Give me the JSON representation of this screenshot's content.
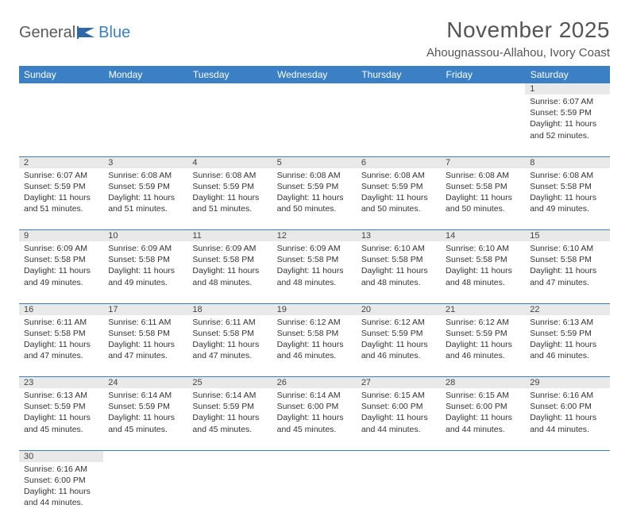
{
  "logo": {
    "text1": "General",
    "text2": "Blue"
  },
  "title": "November 2025",
  "location": "Ahougnassou-Allahou, Ivory Coast",
  "colors": {
    "header_bg": "#3b7fc4",
    "header_text": "#ffffff",
    "daynum_bg": "#e9e9e9",
    "row_divider": "#3b7fc4",
    "text": "#333333",
    "logo_gray": "#5a5a5a",
    "logo_blue": "#3b7fc4"
  },
  "fonts": {
    "title_pt": 28,
    "location_pt": 15,
    "header_pt": 12,
    "daynum_pt": 11,
    "body_pt": 10.5
  },
  "days": [
    "Sunday",
    "Monday",
    "Tuesday",
    "Wednesday",
    "Thursday",
    "Friday",
    "Saturday"
  ],
  "weeks": [
    [
      null,
      null,
      null,
      null,
      null,
      null,
      {
        "n": "1",
        "sr": "6:07 AM",
        "ss": "5:59 PM",
        "dl": "11 hours and 52 minutes."
      }
    ],
    [
      {
        "n": "2",
        "sr": "6:07 AM",
        "ss": "5:59 PM",
        "dl": "11 hours and 51 minutes."
      },
      {
        "n": "3",
        "sr": "6:08 AM",
        "ss": "5:59 PM",
        "dl": "11 hours and 51 minutes."
      },
      {
        "n": "4",
        "sr": "6:08 AM",
        "ss": "5:59 PM",
        "dl": "11 hours and 51 minutes."
      },
      {
        "n": "5",
        "sr": "6:08 AM",
        "ss": "5:59 PM",
        "dl": "11 hours and 50 minutes."
      },
      {
        "n": "6",
        "sr": "6:08 AM",
        "ss": "5:59 PM",
        "dl": "11 hours and 50 minutes."
      },
      {
        "n": "7",
        "sr": "6:08 AM",
        "ss": "5:58 PM",
        "dl": "11 hours and 50 minutes."
      },
      {
        "n": "8",
        "sr": "6:08 AM",
        "ss": "5:58 PM",
        "dl": "11 hours and 49 minutes."
      }
    ],
    [
      {
        "n": "9",
        "sr": "6:09 AM",
        "ss": "5:58 PM",
        "dl": "11 hours and 49 minutes."
      },
      {
        "n": "10",
        "sr": "6:09 AM",
        "ss": "5:58 PM",
        "dl": "11 hours and 49 minutes."
      },
      {
        "n": "11",
        "sr": "6:09 AM",
        "ss": "5:58 PM",
        "dl": "11 hours and 48 minutes."
      },
      {
        "n": "12",
        "sr": "6:09 AM",
        "ss": "5:58 PM",
        "dl": "11 hours and 48 minutes."
      },
      {
        "n": "13",
        "sr": "6:10 AM",
        "ss": "5:58 PM",
        "dl": "11 hours and 48 minutes."
      },
      {
        "n": "14",
        "sr": "6:10 AM",
        "ss": "5:58 PM",
        "dl": "11 hours and 48 minutes."
      },
      {
        "n": "15",
        "sr": "6:10 AM",
        "ss": "5:58 PM",
        "dl": "11 hours and 47 minutes."
      }
    ],
    [
      {
        "n": "16",
        "sr": "6:11 AM",
        "ss": "5:58 PM",
        "dl": "11 hours and 47 minutes."
      },
      {
        "n": "17",
        "sr": "6:11 AM",
        "ss": "5:58 PM",
        "dl": "11 hours and 47 minutes."
      },
      {
        "n": "18",
        "sr": "6:11 AM",
        "ss": "5:58 PM",
        "dl": "11 hours and 47 minutes."
      },
      {
        "n": "19",
        "sr": "6:12 AM",
        "ss": "5:58 PM",
        "dl": "11 hours and 46 minutes."
      },
      {
        "n": "20",
        "sr": "6:12 AM",
        "ss": "5:59 PM",
        "dl": "11 hours and 46 minutes."
      },
      {
        "n": "21",
        "sr": "6:12 AM",
        "ss": "5:59 PM",
        "dl": "11 hours and 46 minutes."
      },
      {
        "n": "22",
        "sr": "6:13 AM",
        "ss": "5:59 PM",
        "dl": "11 hours and 46 minutes."
      }
    ],
    [
      {
        "n": "23",
        "sr": "6:13 AM",
        "ss": "5:59 PM",
        "dl": "11 hours and 45 minutes."
      },
      {
        "n": "24",
        "sr": "6:14 AM",
        "ss": "5:59 PM",
        "dl": "11 hours and 45 minutes."
      },
      {
        "n": "25",
        "sr": "6:14 AM",
        "ss": "5:59 PM",
        "dl": "11 hours and 45 minutes."
      },
      {
        "n": "26",
        "sr": "6:14 AM",
        "ss": "6:00 PM",
        "dl": "11 hours and 45 minutes."
      },
      {
        "n": "27",
        "sr": "6:15 AM",
        "ss": "6:00 PM",
        "dl": "11 hours and 44 minutes."
      },
      {
        "n": "28",
        "sr": "6:15 AM",
        "ss": "6:00 PM",
        "dl": "11 hours and 44 minutes."
      },
      {
        "n": "29",
        "sr": "6:16 AM",
        "ss": "6:00 PM",
        "dl": "11 hours and 44 minutes."
      }
    ],
    [
      {
        "n": "30",
        "sr": "6:16 AM",
        "ss": "6:00 PM",
        "dl": "11 hours and 44 minutes."
      },
      null,
      null,
      null,
      null,
      null,
      null
    ]
  ],
  "labels": {
    "sunrise": "Sunrise:",
    "sunset": "Sunset:",
    "daylight": "Daylight:"
  }
}
